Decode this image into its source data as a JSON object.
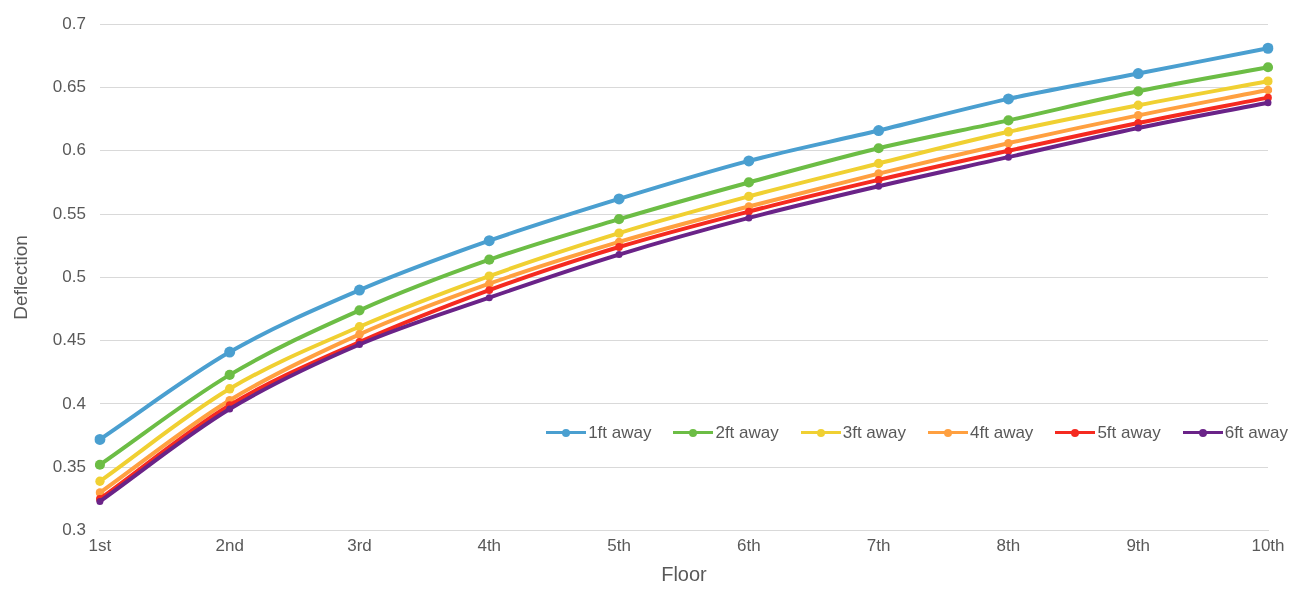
{
  "chart_data": {
    "type": "line",
    "xlabel": "Floor",
    "ylabel": "Deflection",
    "categories": [
      "1st",
      "2nd",
      "3rd",
      "4th",
      "5th",
      "6th",
      "7th",
      "8th",
      "9th",
      "10th"
    ],
    "ylim": [
      0.3,
      0.7
    ],
    "yticks": [
      0.3,
      0.35,
      0.4,
      0.45,
      0.5,
      0.55,
      0.6,
      0.65,
      0.7
    ],
    "grid": "y",
    "legend": "bottom right",
    "marker": "circle",
    "line_style": "solid",
    "series": [
      {
        "name": "1ft away",
        "color": "#4a9fd0",
        "values": [
          0.372,
          0.441,
          0.49,
          0.529,
          0.562,
          0.592,
          0.616,
          0.641,
          0.661,
          0.681
        ]
      },
      {
        "name": "2ft away",
        "color": "#6cbd45",
        "values": [
          0.352,
          0.423,
          0.474,
          0.514,
          0.546,
          0.575,
          0.602,
          0.624,
          0.647,
          0.666
        ]
      },
      {
        "name": "3ft away",
        "color": "#f0d032",
        "values": [
          0.339,
          0.412,
          0.461,
          0.501,
          0.535,
          0.564,
          0.59,
          0.615,
          0.636,
          0.655
        ]
      },
      {
        "name": "4ft away",
        "color": "#ffa040",
        "values": [
          0.33,
          0.403,
          0.455,
          0.495,
          0.528,
          0.556,
          0.582,
          0.606,
          0.628,
          0.648
        ]
      },
      {
        "name": "5ft away",
        "color": "#f52a20",
        "values": [
          0.325,
          0.399,
          0.449,
          0.49,
          0.524,
          0.552,
          0.577,
          0.6,
          0.622,
          0.642
        ]
      },
      {
        "name": "6ft away",
        "color": "#6a2388",
        "values": [
          0.323,
          0.396,
          0.447,
          0.484,
          0.518,
          0.547,
          0.572,
          0.595,
          0.618,
          0.638
        ]
      }
    ]
  }
}
